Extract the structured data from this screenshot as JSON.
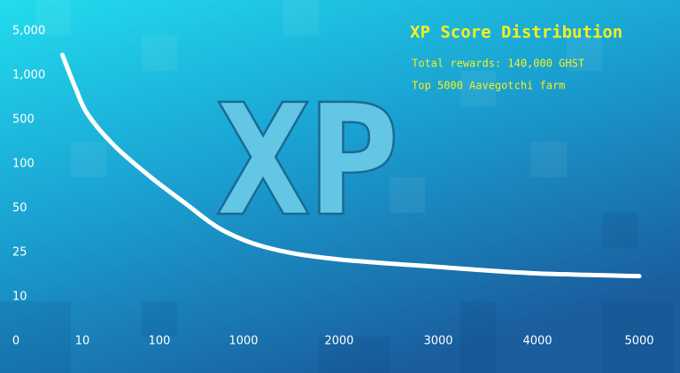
{
  "chart_data": {
    "type": "line",
    "title": "XP Score Distribution",
    "subtitle": [
      "Total rewards: 140,000 GHST",
      "Top 5000 Aavegotchi farm"
    ],
    "logo": "XP",
    "x": [
      7,
      9,
      17,
      48,
      90,
      384,
      763,
      1231,
      1900,
      3045,
      3940,
      5000
    ],
    "values": [
      2840,
      850,
      550,
      260,
      85,
      55,
      38,
      28,
      23,
      20,
      18,
      17
    ],
    "color": "#ffffff",
    "xlim": [
      0,
      5000
    ],
    "ylim": [
      10,
      5000
    ],
    "xticks": [
      0,
      10,
      100,
      1000,
      2000,
      3000,
      4000,
      5000
    ],
    "yticks": [
      {
        "value": 5000,
        "label": "5,000"
      },
      {
        "value": 1000,
        "label": "1,000"
      },
      500,
      100,
      50,
      25,
      10
    ],
    "grid": false
  }
}
